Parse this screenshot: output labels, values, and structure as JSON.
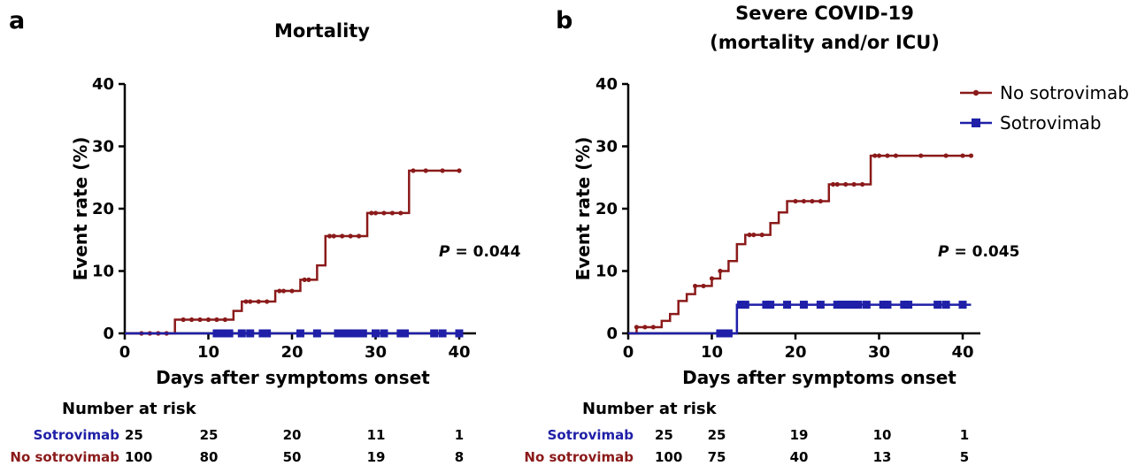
{
  "colors": {
    "no_sotrovimab": "#8b1a1a",
    "sotrovimab": "#1f1fa8"
  },
  "legend": {
    "no_sotrovimab": "No sotrovimab",
    "sotrovimab": "Sotrovimab",
    "position": "top-right of panel b"
  },
  "chart_data": [
    {
      "type": "line",
      "panel": "a",
      "title": "Mortality",
      "xlabel": "Days after symptoms onset",
      "ylabel": "Event rate (%)",
      "xlim": [
        0,
        42
      ],
      "ylim": [
        0,
        40
      ],
      "xticks": [
        0,
        10,
        20,
        30,
        40
      ],
      "yticks": [
        0,
        10,
        20,
        30,
        40
      ],
      "grid": false,
      "p_value": {
        "label": "P",
        "text": "= 0.044"
      },
      "series": [
        {
          "name": "No sotrovimab",
          "step_x": [
            0,
            6,
            13,
            14,
            18,
            21,
            23,
            24,
            29,
            34,
            40
          ],
          "step_y": [
            0,
            2.2,
            3.6,
            5.1,
            6.8,
            8.6,
            10.9,
            15.6,
            19.3,
            26.1,
            26.1
          ],
          "censor_x": [
            2,
            3,
            4,
            5,
            7,
            8,
            9,
            10,
            11,
            12,
            14.5,
            15,
            16,
            17,
            18.5,
            19,
            20,
            21.5,
            22,
            24.5,
            25,
            26,
            27,
            28,
            29.5,
            30,
            31,
            32,
            33,
            34.5,
            36,
            38,
            40
          ],
          "censor_y": [
            0,
            0,
            0,
            0,
            2.2,
            2.2,
            2.2,
            2.2,
            2.2,
            2.2,
            5.1,
            5.1,
            5.1,
            5.1,
            6.8,
            6.8,
            6.8,
            8.6,
            8.6,
            15.6,
            15.6,
            15.6,
            15.6,
            15.6,
            19.3,
            19.3,
            19.3,
            19.3,
            19.3,
            26.1,
            26.1,
            26.1,
            26.1
          ]
        },
        {
          "name": "Sotrovimab",
          "step_x": [
            0,
            40
          ],
          "step_y": [
            0,
            0
          ],
          "censor_x": [
            11,
            11.5,
            12,
            12.5,
            14,
            15,
            16.5,
            17,
            21,
            23,
            25.5,
            26,
            26.5,
            27,
            27.5,
            28,
            28.5,
            30,
            31,
            33,
            33.5,
            37,
            38,
            40
          ],
          "censor_y": [
            0,
            0,
            0,
            0,
            0,
            0,
            0,
            0,
            0,
            0,
            0,
            0,
            0,
            0,
            0,
            0,
            0,
            0,
            0,
            0,
            0,
            0,
            0,
            0
          ]
        }
      ],
      "risk_table": {
        "title": "Number at risk",
        "rows": [
          {
            "label": "Sotrovimab",
            "values": [
              "25",
              "25",
              "20",
              "11",
              "1"
            ]
          },
          {
            "label": "No sotrovimab",
            "values": [
              "100",
              "80",
              "50",
              "19",
              "8"
            ]
          }
        ]
      }
    },
    {
      "type": "line",
      "panel": "b",
      "title_line1": "Severe COVID-19",
      "title_line2": "(mortality and/or ICU)",
      "xlabel": "Days after symptoms onset",
      "ylabel": "Event rate (%)",
      "xlim": [
        0,
        42
      ],
      "ylim": [
        0,
        40
      ],
      "xticks": [
        0,
        10,
        20,
        30,
        40
      ],
      "yticks": [
        0,
        10,
        20,
        30,
        40
      ],
      "grid": false,
      "p_value": {
        "label": "P",
        "text": "= 0.045"
      },
      "series": [
        {
          "name": "No sotrovimab",
          "step_x": [
            0,
            1,
            4,
            5,
            6,
            7,
            8,
            10,
            11,
            12,
            13,
            14,
            17,
            18,
            19,
            20,
            24,
            29,
            41
          ],
          "step_y": [
            0,
            1.0,
            2.0,
            3.1,
            5.2,
            6.3,
            7.6,
            8.8,
            10.0,
            11.6,
            14.3,
            15.8,
            17.7,
            19.4,
            21.2,
            21.2,
            23.9,
            28.5,
            28.5
          ],
          "censor_x": [
            1,
            2,
            3,
            8,
            9,
            10,
            11,
            14.5,
            15,
            16,
            20,
            21,
            22,
            23,
            24.5,
            25,
            26,
            27,
            28,
            29.5,
            30,
            31,
            32,
            35,
            38,
            40,
            41
          ],
          "censor_y": [
            1.0,
            1.0,
            1.0,
            7.6,
            7.6,
            8.8,
            10.0,
            15.8,
            15.8,
            15.8,
            21.2,
            21.2,
            21.2,
            21.2,
            23.9,
            23.9,
            23.9,
            23.9,
            23.9,
            28.5,
            28.5,
            28.5,
            28.5,
            28.5,
            28.5,
            28.5,
            28.5
          ]
        },
        {
          "name": "Sotrovimab",
          "step_x": [
            0,
            13,
            41
          ],
          "step_y": [
            0,
            4.6,
            4.6
          ],
          "censor_x": [
            11,
            11.5,
            12,
            13.5,
            14,
            16.5,
            17,
            19,
            21,
            23,
            25,
            25.5,
            26,
            26.5,
            27,
            27.5,
            28.5,
            30.5,
            31,
            33,
            33.5,
            37,
            38,
            40
          ],
          "censor_y": [
            0,
            0,
            0,
            4.6,
            4.6,
            4.6,
            4.6,
            4.6,
            4.6,
            4.6,
            4.6,
            4.6,
            4.6,
            4.6,
            4.6,
            4.6,
            4.6,
            4.6,
            4.6,
            4.6,
            4.6,
            4.6,
            4.6,
            4.6
          ]
        }
      ],
      "risk_table": {
        "title": "Number at risk",
        "rows": [
          {
            "label": "Sotrovimab",
            "values": [
              "25",
              "25",
              "19",
              "10",
              "1"
            ]
          },
          {
            "label": "No sotrovimab",
            "values": [
              "100",
              "75",
              "40",
              "13",
              "5"
            ]
          }
        ]
      }
    }
  ]
}
